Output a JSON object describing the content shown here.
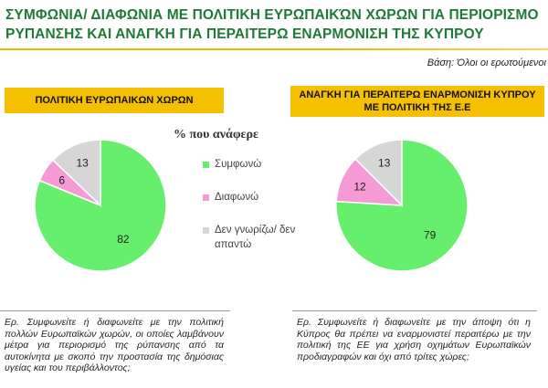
{
  "title": "Συμφωνια/ Διαφωνια Με Πολιτικη Ευρωπαικών Χωρων Για Περιορισμο Ρυπανσης και Αναγκη Για Περαιτερω Εναρμονιση της Κυπρου",
  "basis": "Βάση: Όλοι οι ερωτούμενοι",
  "legend": {
    "title": "% που ανάφερε",
    "items": [
      {
        "label": "Συμφωνώ",
        "color": "#66ef6c"
      },
      {
        "label": "Διαφωνώ",
        "color": "#f59ad4"
      },
      {
        "label": "Δεν γνωρίζω/ δεν απαντώ",
        "color": "#d6d6d6"
      }
    ]
  },
  "questions": {
    "left": "Ερ. Συμφωνείτε ή διαφωνείτε με την πολιτική πολλών Ευρωπαϊκών χωρών, οι οποίες λαμβάνουν μέτρα για περιορισμό της ρύπανσης από τα αυτοκίνητα με σκοπό την προστασία της δημόσιας υγείας και του περιβάλλοντος;",
    "right": "Ερ. Συμφωνείτε ή διαφωνείτε με την άποψη ότι η Κύπρος θα πρέπει να εναρμονιστεί περαιτέρω με την πολιτική της ΕΕ για χρήση οχημάτων Ευρωπαϊκών προδιαγραφών και όχι από τρίτες χώρες;"
  },
  "chart_data": [
    {
      "type": "pie",
      "title": "ΠΟΛΙΤΙΚΗ ΕΥΡΩΠΑΙΚΩΝ ΧΩΡΩΝ",
      "categories": [
        "Συμφωνώ",
        "Διαφωνώ",
        "Δεν γνωρίζω/ δεν απαντώ"
      ],
      "values": [
        82,
        6,
        13
      ]
    },
    {
      "type": "pie",
      "title": "ΑΝΑΓΚΗ ΓΙΑ ΠΕΡΑΙΤΕΡΩ ΕΝΑΡΜΟΝΙΣΗ ΚΥΠΡΟΥ ΜΕ ΠΟΛΙΤΙΚΗ ΤΗΣ Ε.Ε",
      "categories": [
        "Συμφωνώ",
        "Διαφωνώ",
        "Δεν γνωρίζω/ δεν απαντώ"
      ],
      "values": [
        79,
        12,
        13
      ]
    }
  ]
}
